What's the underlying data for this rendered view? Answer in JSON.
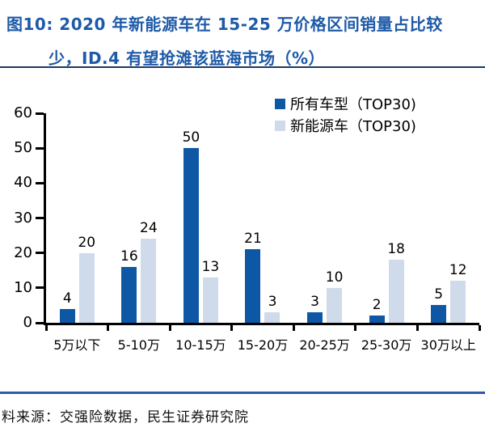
{
  "title": {
    "line1": "图10:  2020 年新能源车在 15-25 万价格区间销量占比较",
    "line2": "少，ID.4 有望抢滩该蓝海市场（%）"
  },
  "source": "料来源：交强险数据，民生证券研究院",
  "colors": {
    "bar_dark": "#0E57A5",
    "bar_light": "#CFDBEB",
    "title_text": "#1E5AA8",
    "title_rule": "#1F3864",
    "bottom_rule": "#2A5CA8",
    "axis": "#000000"
  },
  "chart_data": {
    "type": "bar",
    "categories": [
      "5万以下",
      "5-10万",
      "10-15万",
      "15-20万",
      "20-25万",
      "25-30万",
      "30万以上"
    ],
    "series": [
      {
        "name": "所有车型（TOP30)",
        "values": [
          4,
          16,
          50,
          21,
          3,
          2,
          5
        ]
      },
      {
        "name": "新能源车（TOP30)",
        "values": [
          20,
          24,
          13,
          3,
          10,
          18,
          12
        ]
      }
    ],
    "title": "2020 年新能源车在 15-25 万价格区间销量占比较少，ID.4 有望抢滩该蓝海市场（%）",
    "xlabel": "",
    "ylabel": "",
    "ylim": [
      0,
      60
    ],
    "yticks": [
      0,
      10,
      20,
      30,
      40,
      50,
      60
    ],
    "legend_position": "top-right",
    "grid": false,
    "value_labels": true
  }
}
